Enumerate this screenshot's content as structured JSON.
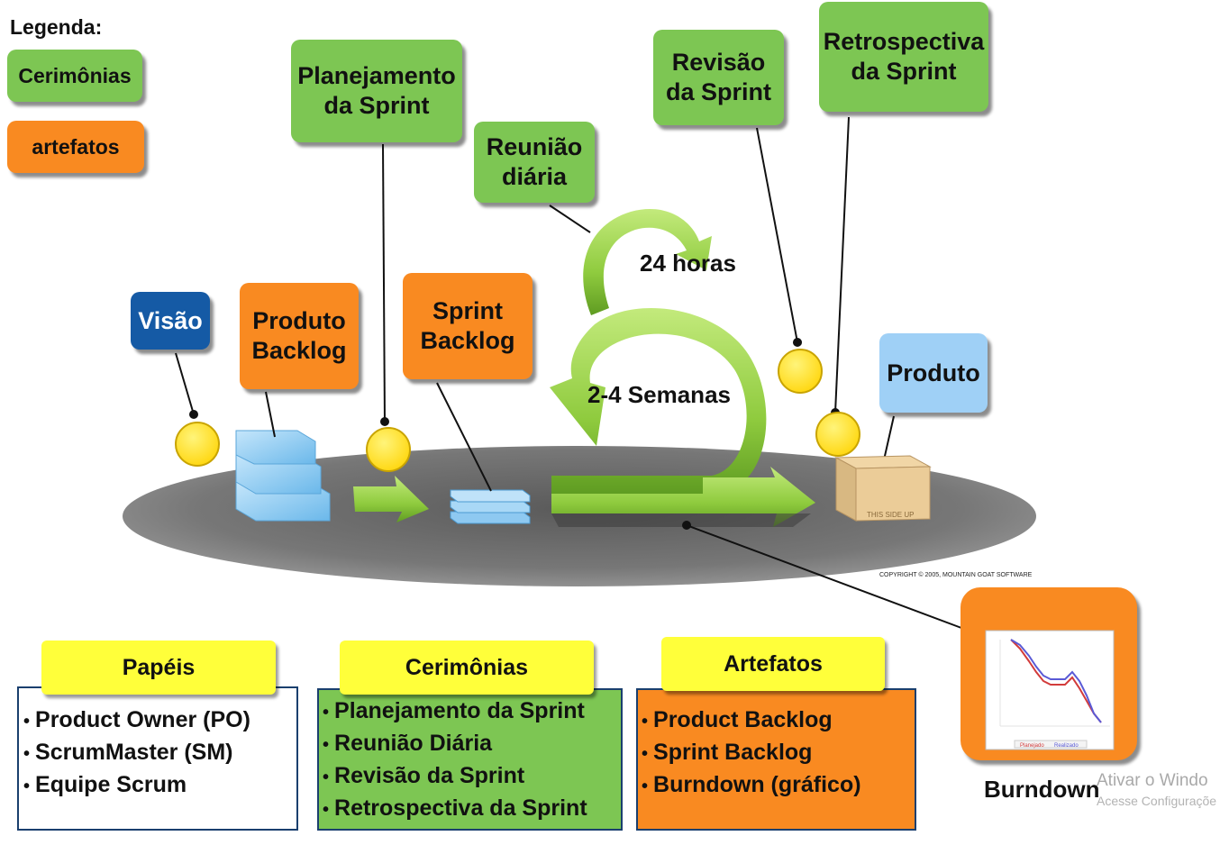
{
  "legend": {
    "title": "Legenda:",
    "ceremonies": "Cerimônias",
    "artifacts": "artefatos"
  },
  "boxes": {
    "planejamento": "Planejamento\nda Sprint",
    "reuniao": "Reunião\ndiária",
    "revisao": "Revisão\nda Sprint",
    "retrospectiva": "Retrospectiva\nda Sprint",
    "visao": "Visão",
    "produto_backlog": "Produto\nBacklog",
    "sprint_backlog": "Sprint\nBacklog",
    "produto": "Produto"
  },
  "cycle": {
    "daily_label": "24 horas",
    "sprint_label": "2-4 Semanas"
  },
  "copyright": "COPYRIGHT © 2005, MOUNTAIN GOAT SOFTWARE",
  "package_label": "THIS SIDE UP",
  "burndown": {
    "label": "Burndown",
    "legend_planned": "Planejado",
    "legend_actual": "Realizado"
  },
  "panels": {
    "papeis": {
      "title": "Papéis",
      "items": [
        "Product Owner (PO)",
        "ScrumMaster (SM)",
        "Equipe Scrum"
      ]
    },
    "cerimonias": {
      "title": "Cerimônias",
      "items": [
        "Planejamento da Sprint",
        "Reunião Diária",
        "Revisão da Sprint",
        "Retrospectiva da Sprint"
      ]
    },
    "artefatos": {
      "title": "Artefatos",
      "items": [
        "Product Backlog",
        "Sprint Backlog",
        "Burndown (gráfico)"
      ]
    }
  },
  "watermark": {
    "line1": "Ativar o Windo",
    "line2": "Acesse Configuraçõe"
  },
  "colors": {
    "ceremony_green": "#7dc653",
    "artifact_orange": "#f98a21",
    "vision_blue": "#155aa5",
    "product_lightblue": "#9fd0f6",
    "header_yellow": "#ffff3a",
    "marker_yellow": "#ffe52e"
  }
}
